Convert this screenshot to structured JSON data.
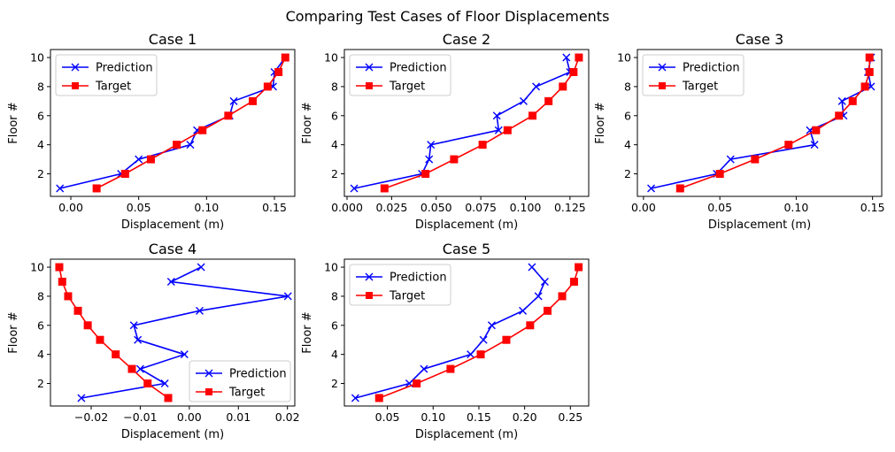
{
  "figure": {
    "suptitle": "Comparing Test Cases of Floor Displacements",
    "colors": {
      "prediction": "#0000ff",
      "target": "#ff0000",
      "axis": "#000000"
    },
    "markers": {
      "prediction": "x",
      "target": "square"
    }
  },
  "chart_data": [
    {
      "type": "line",
      "title": "Case 1",
      "xlabel": "Displacement (m)",
      "ylabel": "Floor #",
      "xlim": [
        -0.015,
        0.165
      ],
      "ylim": [
        0.45,
        10.55
      ],
      "xticks": [
        0.0,
        0.05,
        0.1,
        0.15
      ],
      "xtick_labels": [
        "0.00",
        "0.05",
        "0.10",
        "0.15"
      ],
      "yticks": [
        2,
        4,
        6,
        8,
        10
      ],
      "ytick_labels": [
        "2",
        "4",
        "6",
        "8",
        "10"
      ],
      "legend": {
        "position": "upper-left",
        "entries": [
          "Prediction",
          "Target"
        ]
      },
      "series": [
        {
          "name": "Prediction",
          "color": "#0000ff",
          "marker": "x",
          "floors": [
            1,
            2,
            3,
            4,
            5,
            6,
            7,
            8,
            9,
            10
          ],
          "values": [
            -0.008,
            0.037,
            0.05,
            0.088,
            0.093,
            0.117,
            0.12,
            0.149,
            0.15,
            0.158
          ]
        },
        {
          "name": "Target",
          "color": "#ff0000",
          "marker": "square",
          "floors": [
            1,
            2,
            3,
            4,
            5,
            6,
            7,
            8,
            9,
            10
          ],
          "values": [
            0.019,
            0.04,
            0.059,
            0.078,
            0.097,
            0.116,
            0.134,
            0.145,
            0.153,
            0.158
          ]
        }
      ]
    },
    {
      "type": "line",
      "title": "Case 2",
      "xlabel": "Displacement (m)",
      "ylabel": "Floor #",
      "xlim": [
        -0.0015,
        0.1355
      ],
      "ylim": [
        0.45,
        10.55
      ],
      "xticks": [
        0.0,
        0.025,
        0.05,
        0.075,
        0.1,
        0.125
      ],
      "xtick_labels": [
        "0.000",
        "0.025",
        "0.050",
        "0.075",
        "0.100",
        "0.125"
      ],
      "yticks": [
        2,
        4,
        6,
        8,
        10
      ],
      "ytick_labels": [
        "2",
        "4",
        "6",
        "8",
        "10"
      ],
      "legend": {
        "position": "upper-left",
        "entries": [
          "Prediction",
          "Target"
        ]
      },
      "series": [
        {
          "name": "Prediction",
          "color": "#0000ff",
          "marker": "x",
          "floors": [
            1,
            2,
            3,
            4,
            5,
            6,
            7,
            8,
            9,
            10
          ],
          "values": [
            0.004,
            0.042,
            0.046,
            0.047,
            0.085,
            0.084,
            0.099,
            0.106,
            0.125,
            0.123
          ]
        },
        {
          "name": "Target",
          "color": "#ff0000",
          "marker": "square",
          "floors": [
            1,
            2,
            3,
            4,
            5,
            6,
            7,
            8,
            9,
            10
          ],
          "values": [
            0.021,
            0.044,
            0.06,
            0.076,
            0.09,
            0.104,
            0.113,
            0.121,
            0.127,
            0.13
          ]
        }
      ]
    },
    {
      "type": "line",
      "title": "Case 3",
      "xlabel": "Displacement (m)",
      "ylabel": "Floor #",
      "xlim": [
        -0.004,
        0.156
      ],
      "ylim": [
        0.45,
        10.55
      ],
      "xticks": [
        0.0,
        0.05,
        0.1,
        0.15
      ],
      "xtick_labels": [
        "0.00",
        "0.05",
        "0.10",
        "0.15"
      ],
      "yticks": [
        2,
        4,
        6,
        8,
        10
      ],
      "ytick_labels": [
        "2",
        "4",
        "6",
        "8",
        "10"
      ],
      "legend": {
        "position": "upper-left",
        "entries": [
          "Prediction",
          "Target"
        ]
      },
      "series": [
        {
          "name": "Prediction",
          "color": "#0000ff",
          "marker": "x",
          "floors": [
            1,
            2,
            3,
            4,
            5,
            6,
            7,
            8,
            9,
            10
          ],
          "values": [
            0.005,
            0.048,
            0.057,
            0.112,
            0.109,
            0.131,
            0.13,
            0.149,
            0.147,
            0.149
          ]
        },
        {
          "name": "Target",
          "color": "#ff0000",
          "marker": "square",
          "floors": [
            1,
            2,
            3,
            4,
            5,
            6,
            7,
            8,
            9,
            10
          ],
          "values": [
            0.024,
            0.05,
            0.073,
            0.095,
            0.113,
            0.128,
            0.137,
            0.145,
            0.148,
            0.148
          ]
        }
      ]
    },
    {
      "type": "line",
      "title": "Case 4",
      "xlabel": "Displacement (m)",
      "ylabel": "Floor #",
      "xlim": [
        -0.0283,
        0.0215
      ],
      "ylim": [
        0.45,
        10.55
      ],
      "xticks": [
        -0.02,
        -0.01,
        0.0,
        0.01,
        0.02
      ],
      "xtick_labels": [
        "−0.02",
        "−0.01",
        "0.00",
        "0.01",
        "0.02"
      ],
      "yticks": [
        2,
        4,
        6,
        8,
        10
      ],
      "ytick_labels": [
        "2",
        "4",
        "6",
        "8",
        "10"
      ],
      "legend": {
        "position": "lower-right",
        "entries": [
          "Prediction",
          "Target"
        ]
      },
      "series": [
        {
          "name": "Prediction",
          "color": "#0000ff",
          "marker": "x",
          "floors": [
            1,
            2,
            3,
            4,
            5,
            6,
            7,
            8,
            9,
            10
          ],
          "values": [
            -0.022,
            -0.005,
            -0.01,
            -0.001,
            -0.0105,
            -0.0113,
            0.0021,
            0.0201,
            -0.0037,
            0.0024
          ]
        },
        {
          "name": "Target",
          "color": "#ff0000",
          "marker": "square",
          "floors": [
            1,
            2,
            3,
            4,
            5,
            6,
            7,
            8,
            9,
            10
          ],
          "values": [
            -0.0043,
            -0.0085,
            -0.0117,
            -0.015,
            -0.0182,
            -0.0207,
            -0.0227,
            -0.0247,
            -0.0259,
            -0.0265
          ]
        }
      ]
    },
    {
      "type": "line",
      "title": "Case 5",
      "xlabel": "Displacement (m)",
      "ylabel": "Floor #",
      "xlim": [
        0.003,
        0.27
      ],
      "ylim": [
        0.45,
        10.55
      ],
      "xticks": [
        0.05,
        0.1,
        0.15,
        0.2,
        0.25
      ],
      "xtick_labels": [
        "0.05",
        "0.10",
        "0.15",
        "0.20",
        "0.25"
      ],
      "yticks": [
        2,
        4,
        6,
        8,
        10
      ],
      "ytick_labels": [
        "2",
        "4",
        "6",
        "8",
        "10"
      ],
      "legend": {
        "position": "upper-left",
        "entries": [
          "Prediction",
          "Target"
        ]
      },
      "series": [
        {
          "name": "Prediction",
          "color": "#0000ff",
          "marker": "x",
          "floors": [
            1,
            2,
            3,
            4,
            5,
            6,
            7,
            8,
            9,
            10
          ],
          "values": [
            0.015,
            0.074,
            0.09,
            0.141,
            0.155,
            0.164,
            0.198,
            0.215,
            0.222,
            0.208
          ]
        },
        {
          "name": "Target",
          "color": "#ff0000",
          "marker": "square",
          "floors": [
            1,
            2,
            3,
            4,
            5,
            6,
            7,
            8,
            9,
            10
          ],
          "values": [
            0.041,
            0.082,
            0.119,
            0.152,
            0.18,
            0.206,
            0.225,
            0.241,
            0.254,
            0.259
          ]
        }
      ]
    }
  ]
}
